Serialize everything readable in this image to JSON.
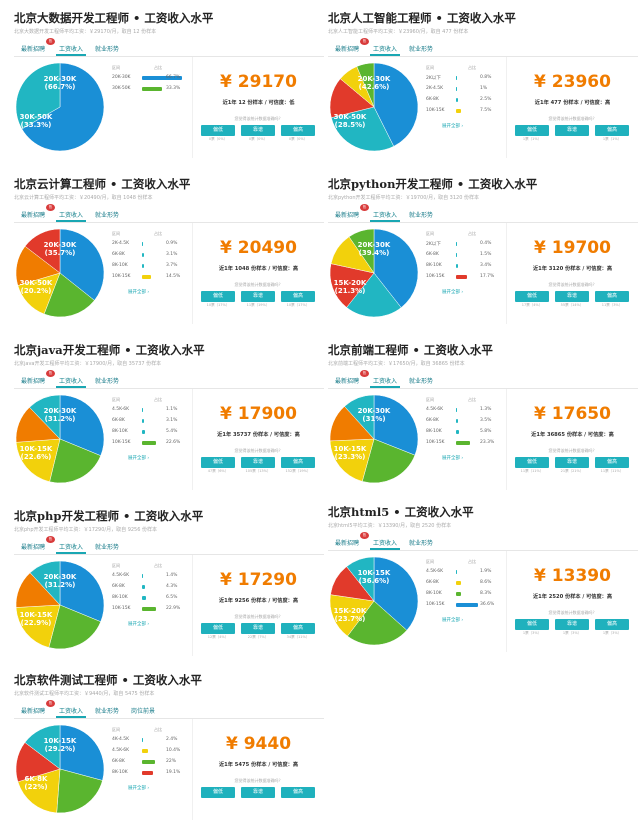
{
  "tabs": {
    "latest": "最新招聘",
    "salary": "工资收入",
    "employment": "就业形势",
    "job_forecast": "岗位前景"
  },
  "hot_badge": "热",
  "headers": {
    "range": "区间",
    "ratio": "占比"
  },
  "expand_label": "展开全部 ›",
  "question": "您觉得该统计数据准确吗？",
  "buttons": {
    "low": "偏低",
    "accurate": "靠谱",
    "high": "偏高"
  },
  "colors": {
    "accent": "#1fb1bd",
    "salary": "#f07c00",
    "blue": "#1a8fd6",
    "green": "#5ab52f",
    "yellow": "#f2d10c",
    "orange": "#f07c00",
    "red": "#e13a2b",
    "cyan": "#21b6c2"
  },
  "cards": [
    {
      "title": "北京大数据开发工程师 • 工资收入水平",
      "subtitle": "北京大数据开发工程师平均工资：￥29170/月，取自 12 份样本",
      "salary": "¥ 29170",
      "sample": "近1年 12 份样本 / 可信度：低",
      "show_forecast": false,
      "label_a": "20K-30K\n(66.7%)",
      "label_b": "30K-50K\n(33.3%)",
      "rows": [
        {
          "range": "20K-30K",
          "ratio": "66.7%",
          "color": "#1a8fd6",
          "fill": 0.667
        },
        {
          "range": "30K-50K",
          "ratio": "33.3%",
          "color": "#5ab52f",
          "fill": 0.333
        }
      ],
      "slices": [
        {
          "value": 66.7,
          "color": "#1a8fd6"
        },
        {
          "value": 33.3,
          "color": "#21b6c2"
        }
      ],
      "counts": [
        "0票（0%）",
        "0票（0%）",
        "0票（0%）"
      ]
    },
    {
      "title": "北京人工智能工程师 • 工资收入水平",
      "subtitle": "北京人工智能工程师平均工资：￥23960/月，取自 477 份样本",
      "salary": "¥ 23960",
      "sample": "近1年 477 份样本 / 可信度：高",
      "show_forecast": false,
      "label_a": "20K-30K\n(42.6%)",
      "label_b": "30K-50K\n(28.5%)",
      "rows": [
        {
          "range": "2K以下",
          "ratio": "0.8%",
          "color": "#21b6c2",
          "fill": 0.008
        },
        {
          "range": "2K-4.5K",
          "ratio": "1%",
          "color": "#21b6c2",
          "fill": 0.01
        },
        {
          "range": "6K-8K",
          "ratio": "2.5%",
          "color": "#21b6c2",
          "fill": 0.025
        },
        {
          "range": "10K-15K",
          "ratio": "7.5%",
          "color": "#f2d10c",
          "fill": 0.075
        }
      ],
      "slices": [
        {
          "value": 42.6,
          "color": "#1a8fd6"
        },
        {
          "value": 28.5,
          "color": "#21b6c2"
        },
        {
          "value": 15,
          "color": "#e13a2b"
        },
        {
          "value": 7.5,
          "color": "#f2d10c"
        },
        {
          "value": 6.4,
          "color": "#5ab52f"
        }
      ],
      "counts": [
        "1票（1%）",
        "",
        "1票（1%）"
      ]
    },
    {
      "title": "北京云计算工程师 • 工资收入水平",
      "subtitle": "北京云计算工程师平均工资：￥20490/月，取自 1048 份样本",
      "salary": "¥ 20490",
      "sample": "近1年 1048 份样本 / 可信度：高",
      "show_forecast": false,
      "label_a": "20K-30K\n(35.7%)",
      "label_b": "30K-50K\n(20.2%)",
      "rows": [
        {
          "range": "2K-4.5K",
          "ratio": "0.9%",
          "color": "#21b6c2",
          "fill": 0.009
        },
        {
          "range": "6K-8K",
          "ratio": "3.1%",
          "color": "#21b6c2",
          "fill": 0.031
        },
        {
          "range": "8K-10K",
          "ratio": "3.7%",
          "color": "#21b6c2",
          "fill": 0.037
        },
        {
          "range": "10K-15K",
          "ratio": "14.5%",
          "color": "#f2d10c",
          "fill": 0.145
        }
      ],
      "slices": [
        {
          "value": 35.7,
          "color": "#1a8fd6"
        },
        {
          "value": 20.2,
          "color": "#5ab52f"
        },
        {
          "value": 14.5,
          "color": "#f2d10c"
        },
        {
          "value": 15,
          "color": "#f07c00"
        },
        {
          "value": 14.6,
          "color": "#e13a2b"
        }
      ],
      "counts": [
        "10票（17%）",
        "11票（19%）",
        "10票（17%）"
      ]
    },
    {
      "title": "北京python开发工程师 • 工资收入水平",
      "subtitle": "北京python开发工程师平均工资：￥19700/月，取自 3120 份样本",
      "salary": "¥ 19700",
      "sample": "近1年 3120 份样本 / 可信度：高",
      "show_forecast": false,
      "label_a": "20K-30K\n(39.4%)",
      "label_b": "15K-20K\n(21.3%)",
      "rows": [
        {
          "range": "2K以下",
          "ratio": "0.4%",
          "color": "#21b6c2",
          "fill": 0.004
        },
        {
          "range": "6K-8K",
          "ratio": "1.5%",
          "color": "#21b6c2",
          "fill": 0.015
        },
        {
          "range": "8K-10K",
          "ratio": "3.4%",
          "color": "#21b6c2",
          "fill": 0.034
        },
        {
          "range": "10K-15K",
          "ratio": "17.7%",
          "color": "#e13a2b",
          "fill": 0.177
        }
      ],
      "slices": [
        {
          "value": 39.4,
          "color": "#1a8fd6"
        },
        {
          "value": 21.3,
          "color": "#21b6c2"
        },
        {
          "value": 17.7,
          "color": "#e13a2b"
        },
        {
          "value": 12,
          "color": "#f2d10c"
        },
        {
          "value": 9.6,
          "color": "#5ab52f"
        }
      ],
      "counts": [
        "17票（4%）",
        "55票（14%）",
        "11票（3%）"
      ]
    },
    {
      "title": "北京java开发工程师 • 工资收入水平",
      "subtitle": "北京java开发工程师平均工资：￥17900/月，取自 35737 份样本",
      "salary": "¥ 17900",
      "sample": "近1年 35737 份样本 / 可信度：高",
      "show_forecast": false,
      "label_a": "20K-30K\n(31.2%)",
      "label_b": "10K-15K\n(22.6%)",
      "rows": [
        {
          "range": "4.5K-6K",
          "ratio": "1.1%",
          "color": "#21b6c2",
          "fill": 0.011
        },
        {
          "range": "6K-8K",
          "ratio": "3.1%",
          "color": "#21b6c2",
          "fill": 0.031
        },
        {
          "range": "8K-10K",
          "ratio": "5.4%",
          "color": "#21b6c2",
          "fill": 0.054
        },
        {
          "range": "10K-15K",
          "ratio": "22.6%",
          "color": "#5ab52f",
          "fill": 0.226
        }
      ],
      "slices": [
        {
          "value": 31.2,
          "color": "#1a8fd6"
        },
        {
          "value": 22.6,
          "color": "#5ab52f"
        },
        {
          "value": 20,
          "color": "#f2d10c"
        },
        {
          "value": 14,
          "color": "#f07c00"
        },
        {
          "value": 12.2,
          "color": "#21b6c2"
        }
      ],
      "counts": [
        "47票（6%）",
        "105票（13%）",
        "152票（19%）"
      ]
    },
    {
      "title": "北京前端工程师 • 工资收入水平",
      "subtitle": "北京前端工程师平均工资：￥17650/月，取自 36865 份样本",
      "salary": "¥ 17650",
      "sample": "近1年 36865 份样本 / 可信度：高",
      "show_forecast": false,
      "label_a": "20K-30K\n(31%)",
      "label_b": "10K-15K\n(23.3%)",
      "rows": [
        {
          "range": "4.5K-6K",
          "ratio": "1.3%",
          "color": "#21b6c2",
          "fill": 0.013
        },
        {
          "range": "6K-8K",
          "ratio": "3.5%",
          "color": "#21b6c2",
          "fill": 0.035
        },
        {
          "range": "8K-10K",
          "ratio": "5.8%",
          "color": "#21b6c2",
          "fill": 0.058
        },
        {
          "range": "10K-15K",
          "ratio": "23.3%",
          "color": "#5ab52f",
          "fill": 0.233
        }
      ],
      "slices": [
        {
          "value": 31,
          "color": "#1a8fd6"
        },
        {
          "value": 23.3,
          "color": "#5ab52f"
        },
        {
          "value": 20,
          "color": "#f2d10c"
        },
        {
          "value": 14,
          "color": "#f07c00"
        },
        {
          "value": 11.7,
          "color": "#21b6c2"
        }
      ],
      "counts": [
        "11票（11%）",
        "21票（21%）",
        "11票（11%）"
      ]
    },
    {
      "title": "北京php开发工程师 • 工资收入水平",
      "subtitle": "北京php开发工程师平均工资：￥17290/月，取自 9256 份样本",
      "salary": "¥ 17290",
      "sample": "近1年 9256 份样本 / 可信度：高",
      "show_forecast": false,
      "label_a": "20K-30K\n(31.2%)",
      "label_b": "10K-15K\n(22.9%)",
      "rows": [
        {
          "range": "4.5K-6K",
          "ratio": "1.4%",
          "color": "#21b6c2",
          "fill": 0.014
        },
        {
          "range": "6K-8K",
          "ratio": "4.3%",
          "color": "#21b6c2",
          "fill": 0.043
        },
        {
          "range": "8K-10K",
          "ratio": "6.5%",
          "color": "#21b6c2",
          "fill": 0.065
        },
        {
          "range": "10K-15K",
          "ratio": "22.9%",
          "color": "#5ab52f",
          "fill": 0.229
        }
      ],
      "slices": [
        {
          "value": 31.2,
          "color": "#1a8fd6"
        },
        {
          "value": 22.9,
          "color": "#5ab52f"
        },
        {
          "value": 20,
          "color": "#f2d10c"
        },
        {
          "value": 14,
          "color": "#f07c00"
        },
        {
          "value": 11.9,
          "color": "#21b6c2"
        }
      ],
      "counts": [
        "12票（4%）",
        "22票（7%）",
        "34票（11%）"
      ]
    },
    {
      "title": "北京html5 • 工资收入水平",
      "subtitle": "北京html5平均工资：￥13390/月，取自 2520 份样本",
      "salary": "¥ 13390",
      "sample": "近1年 2520 份样本 / 可信度：高",
      "show_forecast": false,
      "label_a": "10K-15K\n(36.6%)",
      "label_b": "15K-20K\n(23.7%)",
      "rows": [
        {
          "range": "4.5K-6K",
          "ratio": "1.9%",
          "color": "#21b6c2",
          "fill": 0.019
        },
        {
          "range": "6K-8K",
          "ratio": "8.6%",
          "color": "#f2d10c",
          "fill": 0.086
        },
        {
          "range": "8K-10K",
          "ratio": "8.3%",
          "color": "#5ab52f",
          "fill": 0.083
        },
        {
          "range": "10K-15K",
          "ratio": "36.6%",
          "color": "#1a8fd6",
          "fill": 0.366
        }
      ],
      "slices": [
        {
          "value": 36.6,
          "color": "#1a8fd6"
        },
        {
          "value": 23.7,
          "color": "#5ab52f"
        },
        {
          "value": 17,
          "color": "#f2d10c"
        },
        {
          "value": 12,
          "color": "#e13a2b"
        },
        {
          "value": 10.7,
          "color": "#21b6c2"
        }
      ],
      "counts": [
        "1票（3%）",
        "1票（3%）",
        "1票（3%）"
      ]
    },
    {
      "title": "北京软件测试工程师 • 工资收入水平",
      "subtitle": "北京软件测试工程师平均工资：￥9440/月，取自 5475 份样本",
      "salary": "¥ 9440",
      "sample": "近1年 5475 份样本 / 可信度：高",
      "show_forecast": true,
      "label_a": "10K-15K\n(29.2%)",
      "label_b": "6K-8K\n(22%)",
      "rows": [
        {
          "range": "4K-4.5K",
          "ratio": "2.4%",
          "color": "#21b6c2",
          "fill": 0.024
        },
        {
          "range": "4.5K-6K",
          "ratio": "10.4%",
          "color": "#f2d10c",
          "fill": 0.104
        },
        {
          "range": "6K-8K",
          "ratio": "22%",
          "color": "#5ab52f",
          "fill": 0.22
        },
        {
          "range": "8K-10K",
          "ratio": "19.1%",
          "color": "#e13a2b",
          "fill": 0.191
        }
      ],
      "slices": [
        {
          "value": 29.2,
          "color": "#1a8fd6"
        },
        {
          "value": 22,
          "color": "#5ab52f"
        },
        {
          "value": 19.1,
          "color": "#f2d10c"
        },
        {
          "value": 15,
          "color": "#e13a2b"
        },
        {
          "value": 14.7,
          "color": "#21b6c2"
        }
      ],
      "counts": [
        "",
        "",
        ""
      ]
    }
  ]
}
